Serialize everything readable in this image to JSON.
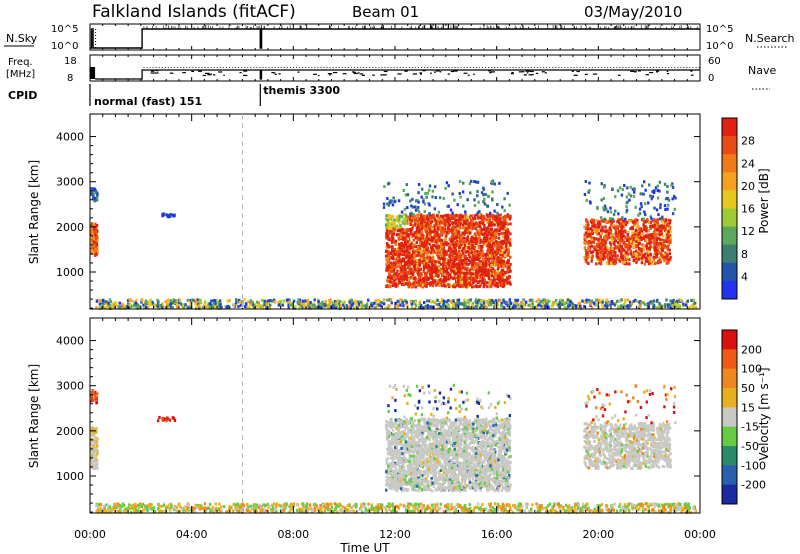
{
  "header": {
    "title": "Falkland Islands (fitACF)",
    "beam": "Beam 01",
    "date": "03/May/2010"
  },
  "status_panels": {
    "nsky_label": "N.Sky",
    "nsearch_label": "N.Search",
    "nsky_ticks": [
      "10^5",
      "10^0"
    ],
    "freq_label": "Freq.",
    "freq_unit": "[MHz]",
    "freq_ticks": [
      "18",
      "8"
    ],
    "nave_label": "Nave",
    "nave_ticks": [
      "60",
      "0"
    ],
    "cpid_label": "CPID",
    "cpid_segments": [
      {
        "label": "normal (fast) 151",
        "start_hour": 0.0
      },
      {
        "label": "themis 3300",
        "start_hour": 6.7
      }
    ]
  },
  "chart_data": [
    {
      "type": "heatmap",
      "name": "power",
      "ylabel": "Slant Range [km]",
      "xlim": [
        0,
        24
      ],
      "ylim": [
        180,
        4500
      ],
      "yticks": [
        1000,
        2000,
        3000,
        4000
      ],
      "colorbar": {
        "label": "Power [dB]",
        "ticks": [
          "28",
          "24",
          "20",
          "16",
          "12",
          "8",
          "4"
        ],
        "colors": [
          "#2233ee",
          "#2255aa",
          "#3a7f70",
          "#5aa85a",
          "#9ccc33",
          "#e8c820",
          "#f5a020",
          "#f07a18",
          "#e84c14",
          "#e02010"
        ]
      }
    },
    {
      "type": "heatmap",
      "name": "velocity",
      "ylabel": "Slant Range [km]",
      "xlabel": "Time UT",
      "xlim": [
        0,
        24
      ],
      "ylim": [
        180,
        4500
      ],
      "yticks": [
        1000,
        2000,
        3000,
        4000
      ],
      "xticks": [
        "00:00",
        "04:00",
        "08:00",
        "12:00",
        "16:00",
        "20:00",
        "00:00"
      ],
      "colorbar": {
        "label": "Velocity [m s⁻¹]",
        "ticks": [
          "200",
          "100",
          "50",
          "15",
          "-15",
          "-50",
          "-100",
          "-200"
        ],
        "colors": [
          "#1a2aa0",
          "#2a5fb0",
          "#2a8a6a",
          "#66cc44",
          "#c8c8c4",
          "#e8b020",
          "#f08820",
          "#ee5a14",
          "#dd1010"
        ]
      }
    }
  ]
}
